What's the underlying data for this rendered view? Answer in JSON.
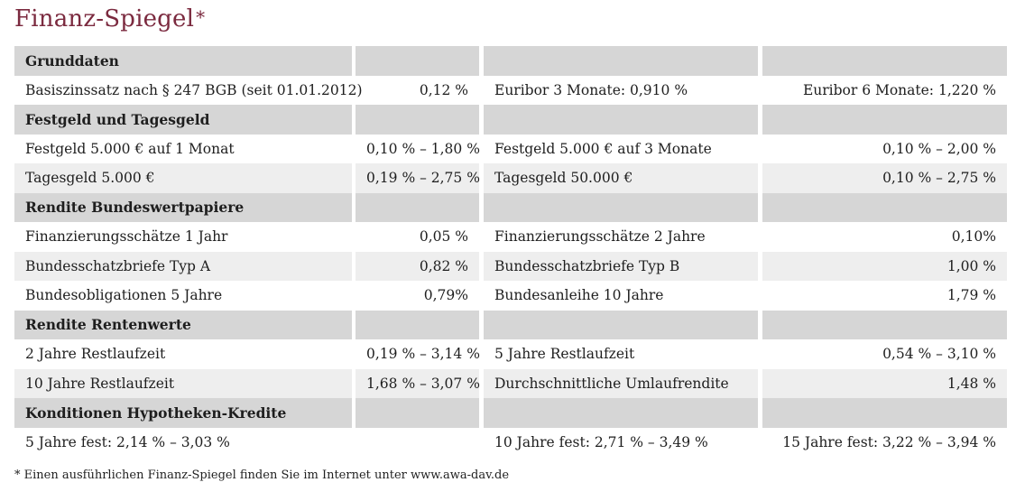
{
  "title": "Finanz-Spiegel",
  "title_mark": "*",
  "sections": [
    {
      "heading": "Grunddaten",
      "rows": [
        [
          "Basiszinssatz nach § 247 BGB (seit 01.01.2012)",
          "0,12 %",
          "Euribor 3 Monate: 0,910 %",
          "Euribor 6 Monate: 1,220 %"
        ]
      ]
    },
    {
      "heading": "Festgeld und Tagesgeld",
      "rows": [
        [
          "Festgeld 5.000 € auf 1 Monat",
          "0,10 % – 1,80 %",
          "Festgeld 5.000 € auf 3 Monate",
          "0,10 % – 2,00 %"
        ],
        [
          "Tagesgeld 5.000 €",
          "0,19 % – 2,75 %",
          "Tagesgeld 50.000 €",
          "0,10 % – 2,75 %"
        ]
      ]
    },
    {
      "heading": "Rendite Bundeswertpapiere",
      "rows": [
        [
          "Finanzierungsschätze 1 Jahr",
          "0,05 %",
          "Finanzierungsschätze 2 Jahre",
          "0,10%"
        ],
        [
          "Bundesschatzbriefe Typ A",
          "0,82 %",
          "Bundesschatzbriefe Typ B",
          "1,00 %"
        ],
        [
          "Bundesobligationen 5 Jahre",
          "0,79%",
          "Bundesanleihe 10 Jahre",
          "1,79 %"
        ]
      ]
    },
    {
      "heading": "Rendite Rentenwerte",
      "rows": [
        [
          "2 Jahre Restlaufzeit",
          "0,19 % – 3,14 %",
          "5 Jahre Restlaufzeit",
          "0,54 % – 3,10 %"
        ],
        [
          "10 Jahre Restlaufzeit",
          "1,68 % – 3,07 %",
          "Durchschnittliche Umlaufrendite",
          "1,48 %"
        ]
      ]
    },
    {
      "heading": "Konditionen Hypotheken-Kredite",
      "rows": [
        [
          "5 Jahre fest: 2,14 % – 3,03 %",
          "",
          "10 Jahre fest: 2,71 % – 3,49 %",
          "15 Jahre fest: 3,22 % – 3,94 %"
        ]
      ]
    }
  ],
  "footnote": "* Einen ausführlichen Finanz-Spiegel finden Sie im Internet unter www.awa-dav.de"
}
